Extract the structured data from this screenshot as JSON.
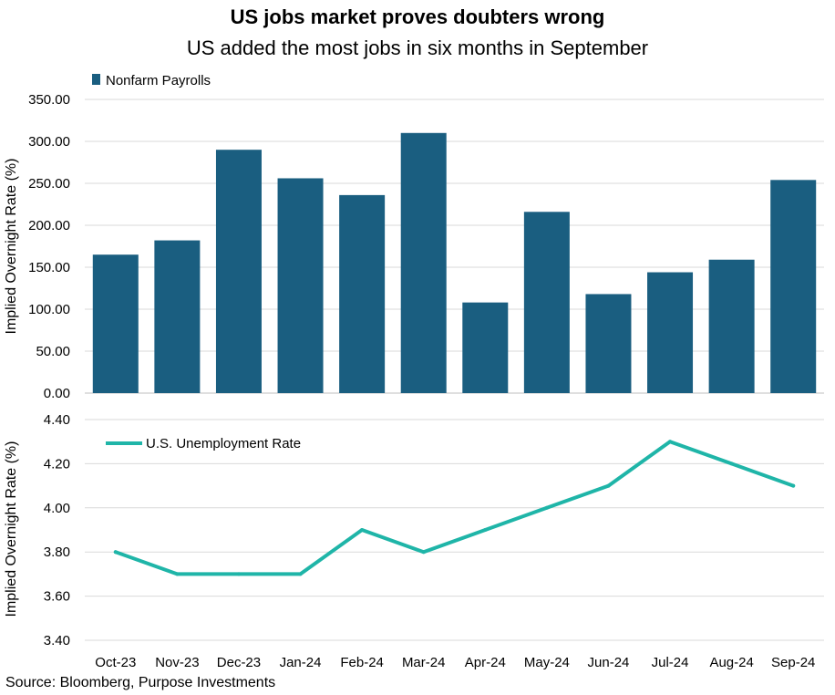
{
  "title": "US jobs market proves doubters wrong",
  "subtitle": "US added the most jobs in six months in September",
  "source": "Source: Bloomberg, Purpose Investments",
  "colors": {
    "bar": "#1a5e80",
    "line": "#1fb5a8",
    "grid": "#d9d9d9"
  },
  "chart_data": [
    {
      "type": "bar",
      "categories": [
        "Oct-23",
        "Nov-23",
        "Dec-23",
        "Jan-24",
        "Feb-24",
        "Mar-24",
        "Apr-24",
        "May-24",
        "Jun-24",
        "Jul-24",
        "Aug-24",
        "Sep-24"
      ],
      "series": [
        {
          "name": "Nonfarm Payrolls",
          "values": [
            165,
            182,
            290,
            256,
            236,
            310,
            108,
            216,
            118,
            144,
            159,
            254
          ]
        }
      ],
      "ylabel": "Implied Overnight Rate (%)",
      "ylim": [
        0,
        350
      ],
      "yticks": [
        "0.00",
        "50.00",
        "100.00",
        "150.00",
        "200.00",
        "250.00",
        "300.00",
        "350.00"
      ],
      "legend": "top-left",
      "grid": true
    },
    {
      "type": "line",
      "categories": [
        "Oct-23",
        "Nov-23",
        "Dec-23",
        "Jan-24",
        "Feb-24",
        "Mar-24",
        "Apr-24",
        "May-24",
        "Jun-24",
        "Jul-24",
        "Aug-24",
        "Sep-24"
      ],
      "series": [
        {
          "name": "U.S. Unemployment Rate",
          "values": [
            3.8,
            3.7,
            3.7,
            3.7,
            3.9,
            3.8,
            3.9,
            4.0,
            4.1,
            4.3,
            4.2,
            4.1
          ]
        }
      ],
      "ylabel": "Implied Overnight Rate (%)",
      "ylim": [
        3.4,
        4.4
      ],
      "yticks": [
        "3.40",
        "3.60",
        "3.80",
        "4.00",
        "4.20",
        "4.40"
      ],
      "legend": "top-left",
      "grid": true
    }
  ]
}
